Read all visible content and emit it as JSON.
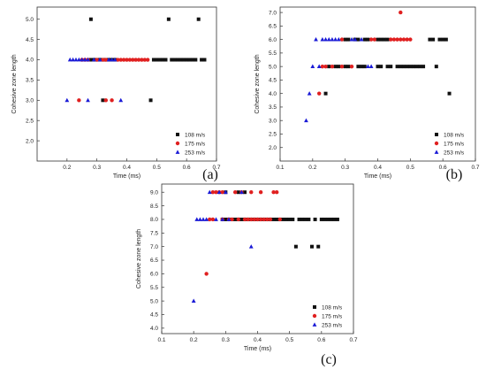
{
  "chart_data": [
    {
      "panel_label": "(a)",
      "type": "scatter",
      "xlabel": "Time (ms)",
      "ylabel": "Cohesive zone length",
      "xlim": [
        0.1,
        0.7
      ],
      "ylim": [
        1.5,
        5.3
      ],
      "xticks": [
        "0.2",
        "0.3",
        "0.4",
        "0.5",
        "0.6",
        "0.7"
      ],
      "yticks": [
        "2.0",
        "2.5",
        "3.0",
        "3.5",
        "4.0",
        "4.5",
        "5.0"
      ],
      "legend_position": "bottom-right",
      "series": [
        {
          "name": "108 m/s",
          "color": "#111111",
          "marker": "square",
          "points": [
            [
              0.28,
              5.0
            ],
            [
              0.54,
              5.0
            ],
            [
              0.64,
              5.0
            ],
            [
              0.28,
              4.0
            ],
            [
              0.29,
              4.0
            ],
            [
              0.3,
              4.0
            ],
            [
              0.31,
              4.0
            ],
            [
              0.32,
              4.0
            ],
            [
              0.33,
              4.0
            ],
            [
              0.34,
              4.0
            ],
            [
              0.35,
              4.0
            ],
            [
              0.36,
              4.0
            ],
            [
              0.49,
              4.0
            ],
            [
              0.5,
              4.0
            ],
            [
              0.51,
              4.0
            ],
            [
              0.52,
              4.0
            ],
            [
              0.53,
              4.0
            ],
            [
              0.55,
              4.0
            ],
            [
              0.56,
              4.0
            ],
            [
              0.57,
              4.0
            ],
            [
              0.58,
              4.0
            ],
            [
              0.59,
              4.0
            ],
            [
              0.6,
              4.0
            ],
            [
              0.61,
              4.0
            ],
            [
              0.62,
              4.0
            ],
            [
              0.63,
              4.0
            ],
            [
              0.65,
              4.0
            ],
            [
              0.66,
              4.0
            ],
            [
              0.32,
              3.0
            ],
            [
              0.48,
              3.0
            ]
          ]
        },
        {
          "name": "175 m/s",
          "color": "#e02020",
          "marker": "circle",
          "points": [
            [
              0.25,
              4.0
            ],
            [
              0.26,
              4.0
            ],
            [
              0.27,
              4.0
            ],
            [
              0.3,
              4.0
            ],
            [
              0.32,
              4.0
            ],
            [
              0.33,
              4.0
            ],
            [
              0.37,
              4.0
            ],
            [
              0.38,
              4.0
            ],
            [
              0.39,
              4.0
            ],
            [
              0.4,
              4.0
            ],
            [
              0.41,
              4.0
            ],
            [
              0.42,
              4.0
            ],
            [
              0.43,
              4.0
            ],
            [
              0.44,
              4.0
            ],
            [
              0.45,
              4.0
            ],
            [
              0.46,
              4.0
            ],
            [
              0.47,
              4.0
            ],
            [
              0.24,
              3.0
            ],
            [
              0.33,
              3.0
            ],
            [
              0.35,
              3.0
            ]
          ]
        },
        {
          "name": "253 m/s",
          "color": "#1a1ad6",
          "marker": "triangle",
          "points": [
            [
              0.21,
              4.0
            ],
            [
              0.22,
              4.0
            ],
            [
              0.23,
              4.0
            ],
            [
              0.24,
              4.0
            ],
            [
              0.25,
              4.0
            ],
            [
              0.26,
              4.0
            ],
            [
              0.27,
              4.0
            ],
            [
              0.29,
              4.0
            ],
            [
              0.31,
              4.0
            ],
            [
              0.34,
              4.0
            ],
            [
              0.35,
              4.0
            ],
            [
              0.36,
              4.0
            ],
            [
              0.2,
              3.0
            ],
            [
              0.27,
              3.0
            ],
            [
              0.38,
              3.0
            ]
          ]
        }
      ]
    },
    {
      "panel_label": "(b)",
      "type": "scatter",
      "xlabel": "Time (ms)",
      "ylabel": "Cohesive zone length",
      "xlim": [
        0.1,
        0.7
      ],
      "ylim": [
        1.5,
        7.2
      ],
      "xticks": [
        "0.1",
        "0.2",
        "0.3",
        "0.4",
        "0.5",
        "0.6",
        "0.7"
      ],
      "yticks": [
        "2.0",
        "2.5",
        "3.0",
        "3.5",
        "4.0",
        "4.5",
        "5.0",
        "5.5",
        "6.0",
        "6.5",
        "7.0"
      ],
      "legend_position": "bottom-right",
      "series": [
        {
          "name": "108 m/s",
          "color": "#111111",
          "marker": "square",
          "points": [
            [
              0.3,
              6.0
            ],
            [
              0.31,
              6.0
            ],
            [
              0.33,
              6.0
            ],
            [
              0.34,
              6.0
            ],
            [
              0.36,
              6.0
            ],
            [
              0.37,
              6.0
            ],
            [
              0.4,
              6.0
            ],
            [
              0.41,
              6.0
            ],
            [
              0.42,
              6.0
            ],
            [
              0.43,
              6.0
            ],
            [
              0.56,
              6.0
            ],
            [
              0.57,
              6.0
            ],
            [
              0.59,
              6.0
            ],
            [
              0.6,
              6.0
            ],
            [
              0.61,
              6.0
            ],
            [
              0.25,
              5.0
            ],
            [
              0.27,
              5.0
            ],
            [
              0.28,
              5.0
            ],
            [
              0.3,
              5.0
            ],
            [
              0.31,
              5.0
            ],
            [
              0.34,
              5.0
            ],
            [
              0.35,
              5.0
            ],
            [
              0.36,
              5.0
            ],
            [
              0.4,
              5.0
            ],
            [
              0.41,
              5.0
            ],
            [
              0.43,
              5.0
            ],
            [
              0.44,
              5.0
            ],
            [
              0.46,
              5.0
            ],
            [
              0.47,
              5.0
            ],
            [
              0.48,
              5.0
            ],
            [
              0.49,
              5.0
            ],
            [
              0.5,
              5.0
            ],
            [
              0.51,
              5.0
            ],
            [
              0.52,
              5.0
            ],
            [
              0.53,
              5.0
            ],
            [
              0.54,
              5.0
            ],
            [
              0.58,
              5.0
            ],
            [
              0.24,
              4.0
            ],
            [
              0.62,
              4.0
            ]
          ]
        },
        {
          "name": "175 m/s",
          "color": "#e02020",
          "marker": "circle",
          "points": [
            [
              0.47,
              7.0
            ],
            [
              0.29,
              6.0
            ],
            [
              0.38,
              6.0
            ],
            [
              0.39,
              6.0
            ],
            [
              0.44,
              6.0
            ],
            [
              0.45,
              6.0
            ],
            [
              0.46,
              6.0
            ],
            [
              0.47,
              6.0
            ],
            [
              0.48,
              6.0
            ],
            [
              0.49,
              6.0
            ],
            [
              0.5,
              6.0
            ],
            [
              0.23,
              5.0
            ],
            [
              0.24,
              5.0
            ],
            [
              0.26,
              5.0
            ],
            [
              0.29,
              5.0
            ],
            [
              0.32,
              5.0
            ],
            [
              0.22,
              4.0
            ]
          ]
        },
        {
          "name": "253 m/s",
          "color": "#1a1ad6",
          "marker": "triangle",
          "points": [
            [
              0.21,
              6.0
            ],
            [
              0.23,
              6.0
            ],
            [
              0.24,
              6.0
            ],
            [
              0.25,
              6.0
            ],
            [
              0.26,
              6.0
            ],
            [
              0.27,
              6.0
            ],
            [
              0.28,
              6.0
            ],
            [
              0.32,
              6.0
            ],
            [
              0.33,
              6.0
            ],
            [
              0.35,
              6.0
            ],
            [
              0.2,
              5.0
            ],
            [
              0.22,
              5.0
            ],
            [
              0.37,
              5.0
            ],
            [
              0.38,
              5.0
            ],
            [
              0.19,
              4.0
            ],
            [
              0.18,
              3.0
            ]
          ]
        }
      ]
    },
    {
      "panel_label": "(c)",
      "type": "scatter",
      "xlabel": "Time (ms)",
      "ylabel": "Cohesive zone length",
      "xlim": [
        0.1,
        0.7
      ],
      "ylim": [
        3.8,
        9.3
      ],
      "xticks": [
        "0.1",
        "0.2",
        "0.3",
        "0.4",
        "0.5",
        "0.6",
        "0.7"
      ],
      "yticks": [
        "4.0",
        "4.5",
        "5.0",
        "5.5",
        "6.0",
        "6.5",
        "7.0",
        "7.5",
        "8.0",
        "8.5",
        "9.0"
      ],
      "legend_position": "bottom-right",
      "series": [
        {
          "name": "108 m/s",
          "color": "#111111",
          "marker": "square",
          "points": [
            [
              0.3,
              9.0
            ],
            [
              0.34,
              9.0
            ],
            [
              0.36,
              9.0
            ],
            [
              0.29,
              8.0
            ],
            [
              0.3,
              8.0
            ],
            [
              0.31,
              8.0
            ],
            [
              0.32,
              8.0
            ],
            [
              0.33,
              8.0
            ],
            [
              0.34,
              8.0
            ],
            [
              0.35,
              8.0
            ],
            [
              0.36,
              8.0
            ],
            [
              0.37,
              8.0
            ],
            [
              0.38,
              8.0
            ],
            [
              0.39,
              8.0
            ],
            [
              0.4,
              8.0
            ],
            [
              0.41,
              8.0
            ],
            [
              0.42,
              8.0
            ],
            [
              0.43,
              8.0
            ],
            [
              0.44,
              8.0
            ],
            [
              0.45,
              8.0
            ],
            [
              0.46,
              8.0
            ],
            [
              0.47,
              8.0
            ],
            [
              0.48,
              8.0
            ],
            [
              0.49,
              8.0
            ],
            [
              0.5,
              8.0
            ],
            [
              0.51,
              8.0
            ],
            [
              0.53,
              8.0
            ],
            [
              0.54,
              8.0
            ],
            [
              0.55,
              8.0
            ],
            [
              0.56,
              8.0
            ],
            [
              0.58,
              8.0
            ],
            [
              0.6,
              8.0
            ],
            [
              0.61,
              8.0
            ],
            [
              0.62,
              8.0
            ],
            [
              0.63,
              8.0
            ],
            [
              0.64,
              8.0
            ],
            [
              0.65,
              8.0
            ],
            [
              0.52,
              7.0
            ],
            [
              0.57,
              7.0
            ],
            [
              0.59,
              7.0
            ]
          ]
        },
        {
          "name": "175 m/s",
          "color": "#e02020",
          "marker": "circle",
          "points": [
            [
              0.26,
              9.0
            ],
            [
              0.27,
              9.0
            ],
            [
              0.28,
              9.0
            ],
            [
              0.29,
              9.0
            ],
            [
              0.33,
              9.0
            ],
            [
              0.35,
              9.0
            ],
            [
              0.38,
              9.0
            ],
            [
              0.41,
              9.0
            ],
            [
              0.45,
              9.0
            ],
            [
              0.46,
              9.0
            ],
            [
              0.25,
              8.0
            ],
            [
              0.26,
              8.0
            ],
            [
              0.29,
              8.0
            ],
            [
              0.31,
              8.0
            ],
            [
              0.32,
              8.0
            ],
            [
              0.34,
              8.0
            ],
            [
              0.36,
              8.0
            ],
            [
              0.37,
              8.0
            ],
            [
              0.38,
              8.0
            ],
            [
              0.39,
              8.0
            ],
            [
              0.4,
              8.0
            ],
            [
              0.41,
              8.0
            ],
            [
              0.42,
              8.0
            ],
            [
              0.43,
              8.0
            ],
            [
              0.44,
              8.0
            ],
            [
              0.47,
              8.0
            ],
            [
              0.24,
              6.0
            ]
          ]
        },
        {
          "name": "253 m/s",
          "color": "#1a1ad6",
          "marker": "triangle",
          "points": [
            [
              0.25,
              9.0
            ],
            [
              0.28,
              9.0
            ],
            [
              0.3,
              9.0
            ],
            [
              0.35,
              9.0
            ],
            [
              0.21,
              8.0
            ],
            [
              0.22,
              8.0
            ],
            [
              0.23,
              8.0
            ],
            [
              0.24,
              8.0
            ],
            [
              0.27,
              8.0
            ],
            [
              0.29,
              8.0
            ],
            [
              0.31,
              8.0
            ],
            [
              0.38,
              7.0
            ],
            [
              0.2,
              5.0
            ]
          ]
        }
      ]
    }
  ]
}
